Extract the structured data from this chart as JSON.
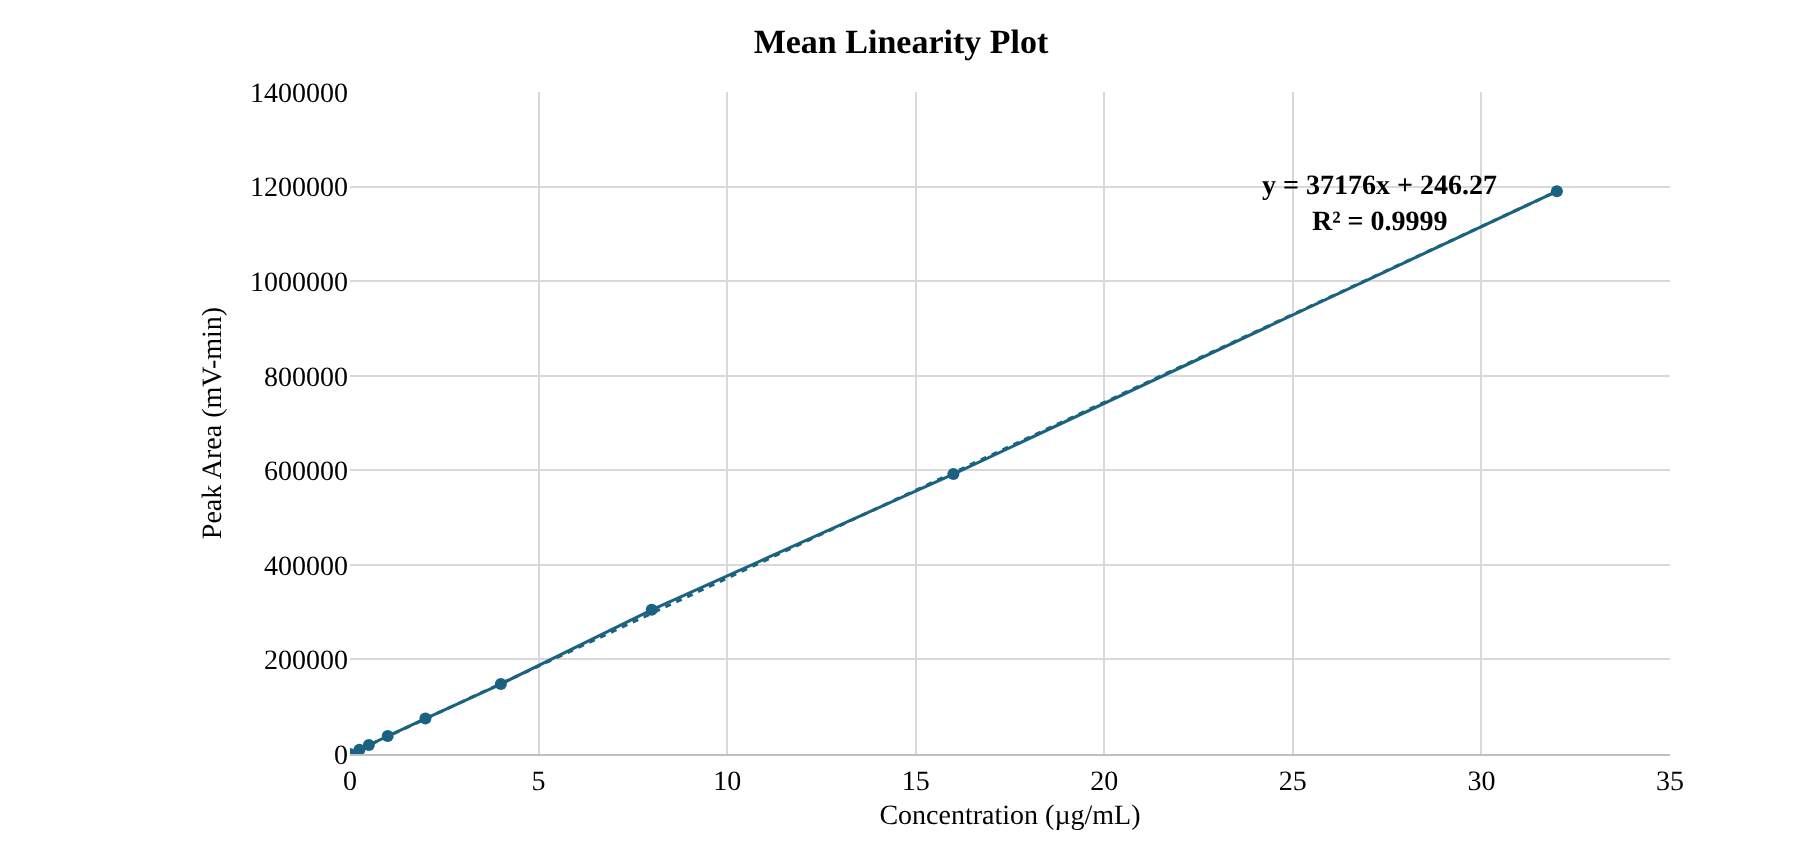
{
  "chart_data": {
    "type": "line",
    "title": "Mean Linearity Plot",
    "xlabel": "Concentration (µg/mL)",
    "ylabel": "Peak Area (mV-min)",
    "x": [
      0,
      0.25,
      0.5,
      1,
      2,
      4,
      8,
      16,
      32
    ],
    "series": [
      {
        "color": "#1b6280",
        "values": [
          0,
          9000,
          19000,
          38000,
          75000,
          148000,
          305000,
          592000,
          1190000
        ],
        "marker": "circle",
        "line_style": "solid"
      },
      {
        "type": "line",
        "color": "#1b6280",
        "x": [
          0,
          32
        ],
        "values": [
          0,
          1190000
        ],
        "line_style": "dotted"
      }
    ],
    "xlim": [
      0,
      35
    ],
    "xticks": [
      0,
      5,
      10,
      15,
      20,
      25,
      30,
      35
    ],
    "ylim": [
      0,
      1400000
    ],
    "yticks": [
      0,
      200000,
      400000,
      600000,
      800000,
      1000000,
      1200000,
      1400000
    ],
    "grid": true,
    "annotations": [
      "y = 37176x + 246.27",
      "R² = 0.9999"
    ]
  }
}
